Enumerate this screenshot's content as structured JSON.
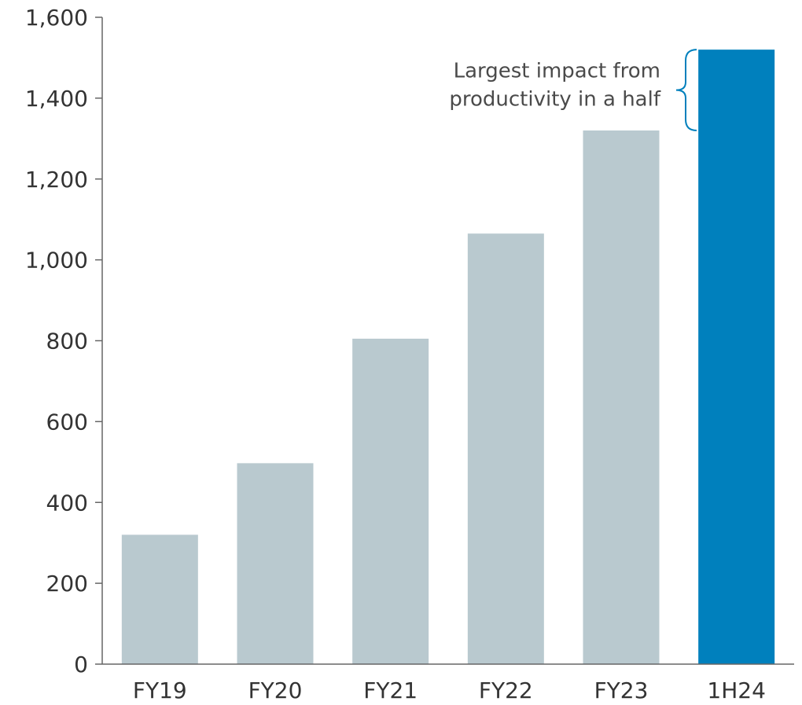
{
  "chart_data": {
    "type": "bar",
    "categories": [
      "FY19",
      "FY20",
      "FY21",
      "FY22",
      "FY23",
      "1H24"
    ],
    "values": [
      320,
      497,
      805,
      1065,
      1320,
      1520
    ],
    "ylim": [
      0,
      1600
    ],
    "yticks": [
      0,
      200,
      400,
      600,
      800,
      1000,
      1200,
      1400,
      1600
    ],
    "ytick_labels": [
      "0",
      "200",
      "400",
      "600",
      "800",
      "1,000",
      "1,200",
      "1,400",
      "1,600"
    ],
    "grid": false,
    "colors": {
      "default_bar": "#b9c9cf",
      "highlight_bar": "#0080bd",
      "bracket": "#0080bd"
    },
    "highlight_index": 5,
    "annotation": {
      "lines": [
        "Largest impact from",
        "productivity in a half"
      ],
      "bracket_from": 1320,
      "bracket_to": 1520
    }
  }
}
